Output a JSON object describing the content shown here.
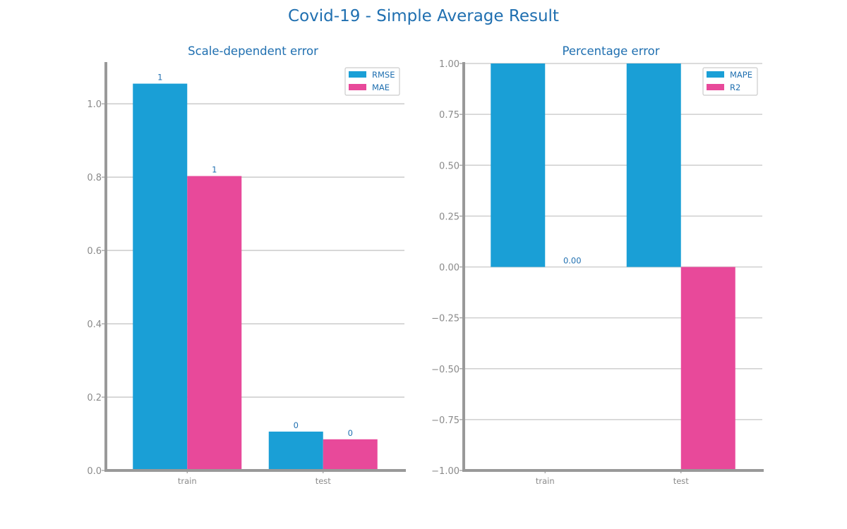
{
  "title": "Covid-19 - Simple Average Result",
  "colors": {
    "series1": "#1a9fd6",
    "series2": "#e8499a",
    "text": "#1f6fb0",
    "axis": "#999999",
    "grid": "#cfcfcf"
  },
  "chart_data": [
    {
      "type": "bar",
      "title": "Scale-dependent error",
      "categories": [
        "train",
        "test"
      ],
      "series": [
        {
          "name": "RMSE",
          "values": [
            1.055,
            0.106
          ],
          "labels": [
            "1",
            "0"
          ]
        },
        {
          "name": "MAE",
          "values": [
            0.803,
            0.085
          ],
          "labels": [
            "1",
            "0"
          ]
        }
      ],
      "ylim": [
        0,
        1.11
      ],
      "yticks": [
        0.0,
        0.2,
        0.4,
        0.6,
        0.8,
        1.0
      ],
      "ytick_labels": [
        "0.0",
        "0.2",
        "0.4",
        "0.6",
        "0.8",
        "1.0"
      ],
      "xlabel": "",
      "ylabel": "",
      "grid": true,
      "legend": "top-right"
    },
    {
      "type": "bar",
      "title": "Percentage error",
      "categories": [
        "train",
        "test"
      ],
      "series": [
        {
          "name": "MAPE",
          "values": [
            1.0,
            1.0
          ],
          "labels": [
            "",
            ""
          ]
        },
        {
          "name": "R2",
          "values": [
            0.0,
            -1.0
          ],
          "labels": [
            "0.00",
            ""
          ]
        }
      ],
      "ylim": [
        -1.0,
        1.0
      ],
      "yticks": [
        -1.0,
        -0.75,
        -0.5,
        -0.25,
        0.0,
        0.25,
        0.5,
        0.75,
        1.0
      ],
      "ytick_labels": [
        "−1.00",
        "−0.75",
        "−0.50",
        "−0.25",
        "0.00",
        "0.25",
        "0.50",
        "0.75",
        "1.00"
      ],
      "xlabel": "",
      "ylabel": "",
      "grid": true,
      "legend": "top-right"
    }
  ]
}
